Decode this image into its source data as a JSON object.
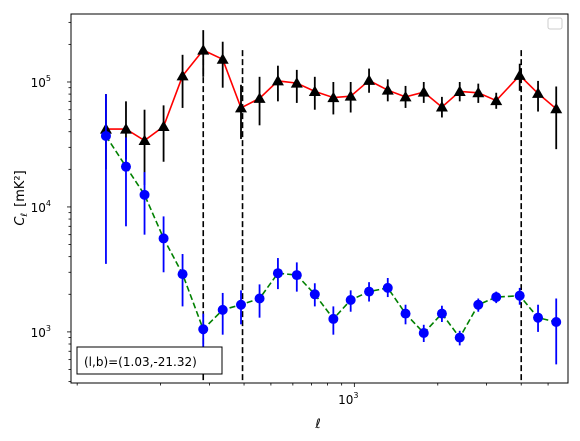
{
  "chart_data": {
    "type": "scatter",
    "xscale": "log",
    "yscale": "log",
    "xlim": [
      95,
      5900
    ],
    "ylim": [
      390,
      350000
    ],
    "xlabel": "ℓ",
    "ylabel_main": "C",
    "ylabel_sub": "ℓ",
    "ylabel_unit": "[mK²]",
    "xticks": [
      {
        "value": 1000,
        "base": "10",
        "exp": "3"
      }
    ],
    "yticks": [
      {
        "value": 1000,
        "base": "10",
        "exp": "3"
      },
      {
        "value": 10000,
        "base": "10",
        "exp": "4"
      },
      {
        "value": 100000,
        "base": "10",
        "exp": "5"
      }
    ],
    "vlines": [
      285,
      395,
      4000
    ],
    "annotation": "(l,b)=(1.03,-21.32)",
    "legend": "top-right",
    "series": [
      {
        "marker": "triangle",
        "color": "#000000",
        "line_color": "#ff0000",
        "line_style": "solid",
        "points": [
          {
            "x": 127,
            "y": 42000,
            "lo": 20000,
            "hi": 80000
          },
          {
            "x": 150,
            "y": 42000,
            "lo": 24000,
            "hi": 70000
          },
          {
            "x": 175,
            "y": 34000,
            "lo": 15000,
            "hi": 60000
          },
          {
            "x": 205,
            "y": 44000,
            "lo": 23000,
            "hi": 65000
          },
          {
            "x": 240,
            "y": 112000,
            "lo": 62000,
            "hi": 165000
          },
          {
            "x": 285,
            "y": 180000,
            "lo": 110000,
            "hi": 260000
          },
          {
            "x": 335,
            "y": 152000,
            "lo": 90000,
            "hi": 210000
          },
          {
            "x": 390,
            "y": 62000,
            "lo": 35000,
            "hi": 95000
          },
          {
            "x": 455,
            "y": 74000,
            "lo": 45000,
            "hi": 110000
          },
          {
            "x": 530,
            "y": 102000,
            "lo": 70000,
            "hi": 135000
          },
          {
            "x": 620,
            "y": 98000,
            "lo": 68000,
            "hi": 125000
          },
          {
            "x": 720,
            "y": 84000,
            "lo": 60000,
            "hi": 110000
          },
          {
            "x": 840,
            "y": 75000,
            "lo": 55000,
            "hi": 100000
          },
          {
            "x": 970,
            "y": 77000,
            "lo": 57000,
            "hi": 100000
          },
          {
            "x": 1130,
            "y": 103000,
            "lo": 82000,
            "hi": 128000
          },
          {
            "x": 1320,
            "y": 86000,
            "lo": 70000,
            "hi": 105000
          },
          {
            "x": 1530,
            "y": 76000,
            "lo": 62000,
            "hi": 93000
          },
          {
            "x": 1780,
            "y": 83000,
            "lo": 68000,
            "hi": 100000
          },
          {
            "x": 2070,
            "y": 63000,
            "lo": 52000,
            "hi": 76000
          },
          {
            "x": 2400,
            "y": 84000,
            "lo": 70000,
            "hi": 100000
          },
          {
            "x": 2800,
            "y": 82000,
            "lo": 68000,
            "hi": 97000
          },
          {
            "x": 3250,
            "y": 71000,
            "lo": 61000,
            "hi": 82000
          },
          {
            "x": 3950,
            "y": 113000,
            "lo": 85000,
            "hi": 140000
          },
          {
            "x": 4600,
            "y": 81000,
            "lo": 58000,
            "hi": 102000
          },
          {
            "x": 5350,
            "y": 61000,
            "lo": 29000,
            "hi": 92000
          }
        ]
      },
      {
        "marker": "circle",
        "color": "#0000ff",
        "line_color": "#008000",
        "line_style": "dashed",
        "points": [
          {
            "x": 127,
            "y": 37000,
            "lo": 3500,
            "hi": 80000
          },
          {
            "x": 150,
            "y": 21000,
            "lo": 7000,
            "hi": 36000
          },
          {
            "x": 175,
            "y": 12500,
            "lo": 6000,
            "hi": 19000
          },
          {
            "x": 205,
            "y": 5600,
            "lo": 3000,
            "hi": 8400
          },
          {
            "x": 240,
            "y": 2900,
            "lo": 1600,
            "hi": 4200
          },
          {
            "x": 285,
            "y": 1050,
            "lo": 700,
            "hi": 1400
          },
          {
            "x": 335,
            "y": 1500,
            "lo": 950,
            "hi": 2050
          },
          {
            "x": 390,
            "y": 1650,
            "lo": 1150,
            "hi": 2150
          },
          {
            "x": 455,
            "y": 1850,
            "lo": 1300,
            "hi": 2400
          },
          {
            "x": 530,
            "y": 2950,
            "lo": 2200,
            "hi": 3900
          },
          {
            "x": 620,
            "y": 2850,
            "lo": 2100,
            "hi": 3600
          },
          {
            "x": 720,
            "y": 2000,
            "lo": 1600,
            "hi": 2450
          },
          {
            "x": 840,
            "y": 1270,
            "lo": 950,
            "hi": 1600
          },
          {
            "x": 970,
            "y": 1800,
            "lo": 1450,
            "hi": 2150
          },
          {
            "x": 1130,
            "y": 2100,
            "lo": 1750,
            "hi": 2500
          },
          {
            "x": 1320,
            "y": 2250,
            "lo": 1900,
            "hi": 2700
          },
          {
            "x": 1530,
            "y": 1400,
            "lo": 1150,
            "hi": 1650
          },
          {
            "x": 1780,
            "y": 980,
            "lo": 830,
            "hi": 1140
          },
          {
            "x": 2070,
            "y": 1400,
            "lo": 1200,
            "hi": 1620
          },
          {
            "x": 2400,
            "y": 900,
            "lo": 780,
            "hi": 1020
          },
          {
            "x": 2800,
            "y": 1650,
            "lo": 1450,
            "hi": 1850
          },
          {
            "x": 3250,
            "y": 1900,
            "lo": 1700,
            "hi": 2100
          },
          {
            "x": 3950,
            "y": 1950,
            "lo": 1650,
            "hi": 2250
          },
          {
            "x": 4600,
            "y": 1300,
            "lo": 1000,
            "hi": 1650
          },
          {
            "x": 5350,
            "y": 1200,
            "lo": 550,
            "hi": 1850
          }
        ]
      }
    ]
  }
}
